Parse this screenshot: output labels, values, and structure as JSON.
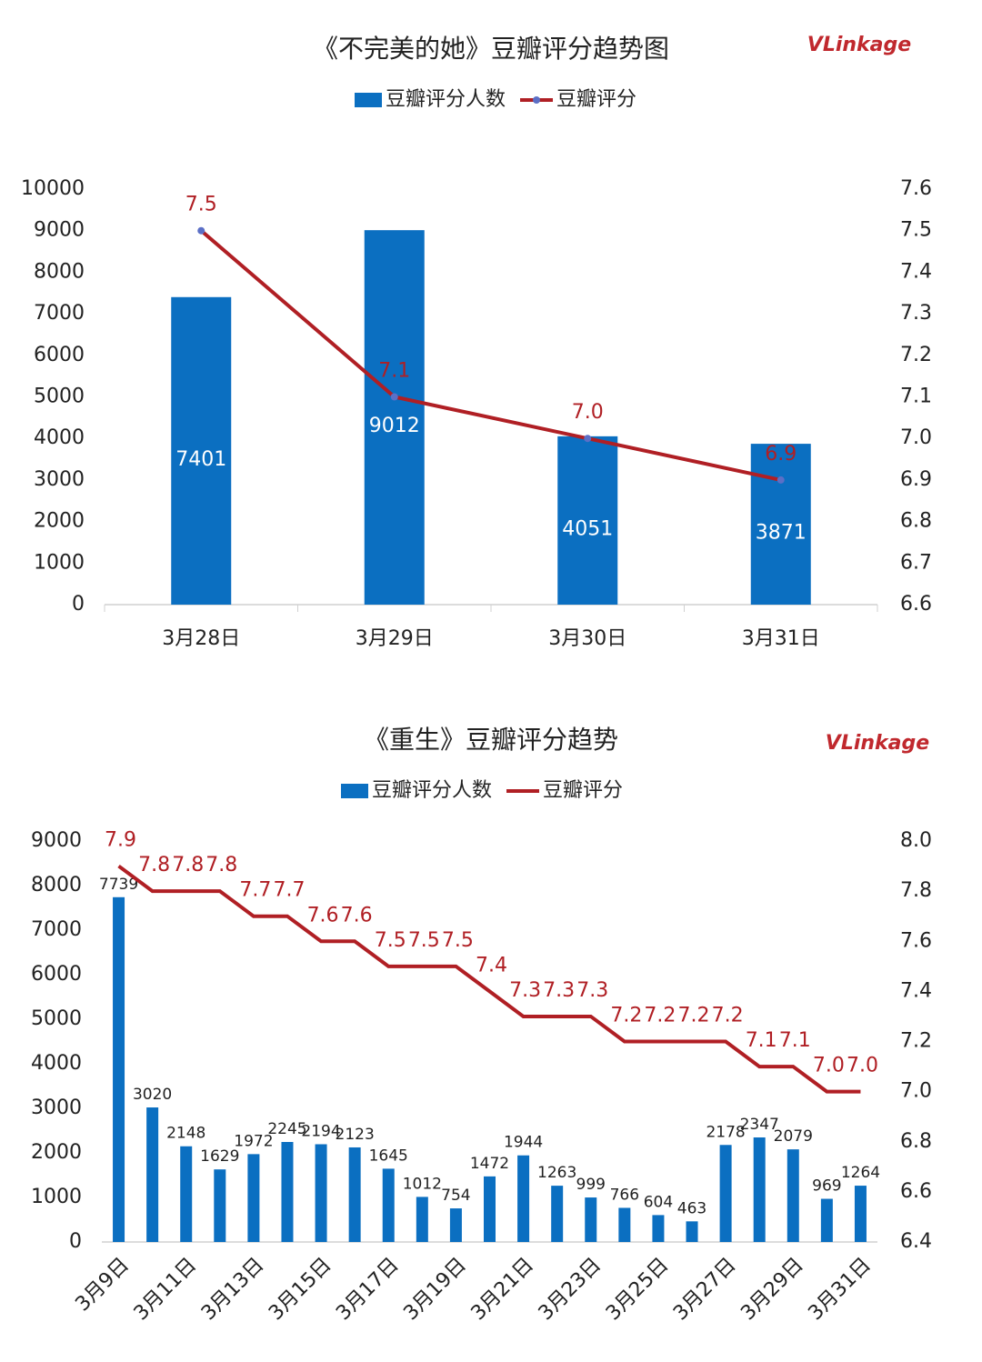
{
  "chart_data": [
    {
      "type": "combo",
      "title": "《不完美的她》豆瓣评分趋势图",
      "logo": "VLinkage",
      "categories": [
        "3月28日",
        "3月29日",
        "3月30日",
        "3月31日"
      ],
      "series": [
        {
          "name": "豆瓣评分人数",
          "type": "bar",
          "color": "#0b6fc1",
          "values": [
            7401,
            9012,
            4051,
            3871
          ]
        },
        {
          "name": "豆瓣评分",
          "type": "line",
          "axis": "y2",
          "color": "#b01f24",
          "marker": true,
          "values": [
            7.5,
            7.1,
            7.0,
            6.9
          ],
          "value_labels": [
            "7.5",
            "7.1",
            "7.0",
            "6.9"
          ]
        }
      ],
      "ylim": [
        0,
        10000
      ],
      "yticks": [
        0,
        1000,
        2000,
        3000,
        4000,
        5000,
        6000,
        7000,
        8000,
        9000,
        10000
      ],
      "y2lim": [
        6.6,
        7.6
      ],
      "y2ticks": [
        6.6,
        6.7,
        6.8,
        6.9,
        {
          "value": 7,
          "label": "7.0"
        },
        7.1,
        7.2,
        7.3,
        7.4,
        7.5,
        7.6
      ]
    },
    {
      "type": "combo",
      "title": "《重生》豆瓣评分趋势",
      "logo": "VLinkage",
      "categories": [
        "3月9日",
        null,
        "3月11日",
        null,
        "3月13日",
        null,
        "3月15日",
        null,
        "3月17日",
        null,
        "3月19日",
        null,
        "3月21日",
        null,
        "3月23日",
        null,
        "3月25日",
        null,
        "3月27日",
        null,
        "3月29日",
        null,
        "3月31日"
      ],
      "series": [
        {
          "name": "豆瓣评分人数",
          "type": "bar",
          "color": "#0b6fc1",
          "values": [
            7739,
            3020,
            2148,
            1629,
            1972,
            2245,
            2194,
            2123,
            1645,
            1012,
            754,
            1472,
            1944,
            1263,
            999,
            766,
            604,
            463,
            2178,
            2347,
            2079,
            969,
            1264
          ]
        },
        {
          "name": "豆瓣评分",
          "type": "line",
          "axis": "y2",
          "color": "#b01f24",
          "marker": false,
          "values": [
            7.9,
            7.8,
            7.8,
            7.8,
            7.7,
            7.7,
            7.6,
            7.6,
            7.5,
            7.5,
            7.5,
            7.4,
            7.3,
            7.3,
            7.3,
            7.2,
            7.2,
            7.2,
            7.2,
            7.1,
            7.1,
            7.0,
            7.0
          ],
          "value_labels": [
            "7.9",
            "7.8",
            "7.8",
            "7.8",
            "7.7",
            "7.7",
            "7.6",
            "7.6",
            "7.5",
            "7.5",
            "7.5",
            "7.4",
            "7.3",
            "7.3",
            "7.3",
            "7.2",
            "7.2",
            "7.2",
            "7.2",
            "7.1",
            "7.1",
            "7.0",
            "7.0"
          ]
        }
      ],
      "ylim": [
        0,
        9000
      ],
      "yticks": [
        0,
        1000,
        2000,
        3000,
        4000,
        5000,
        6000,
        7000,
        8000,
        9000
      ],
      "y2lim": [
        6.4,
        8.0
      ],
      "y2ticks": [
        6.4,
        6.6,
        6.8,
        {
          "value": 7,
          "label": "7.0"
        },
        7.2,
        7.4,
        7.6,
        7.8,
        {
          "value": 8,
          "label": "8.0"
        }
      ]
    }
  ]
}
